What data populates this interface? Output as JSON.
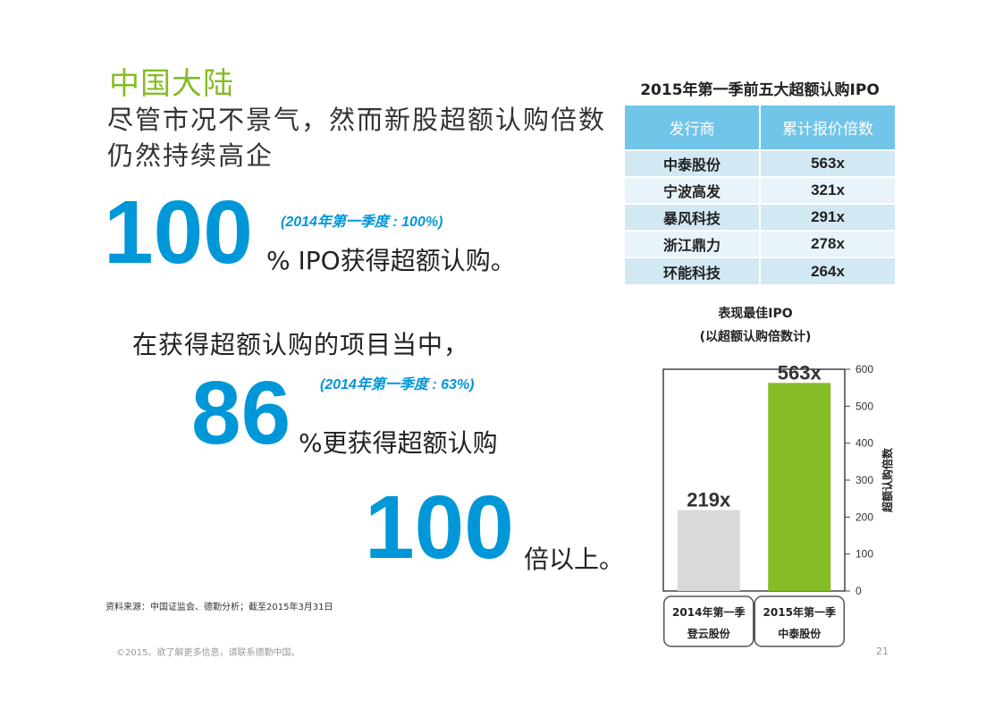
{
  "section_title": "中国大陆",
  "headline": "尽管市况不景气，然而新股超额认购倍数仍然持续高企",
  "stat1": {
    "number": "100",
    "note": "(2014年第一季度 : 100%)",
    "text": "% IPO获得超额认购。"
  },
  "stat2": {
    "intro": "在获得超额认购的项目当中，",
    "number": "86",
    "note": "(2014年第一季度 : 63%)",
    "text": "%更获得超额认购"
  },
  "stat3": {
    "number": "100",
    "text": "倍以上。"
  },
  "source": "资料来源：中国证监会、德勤分析；截至2015年3月31日",
  "footer": "©2015。欲了解更多信息，请联系德勤中国。",
  "page_number": "21",
  "table": {
    "title": "2015年第一季前五大超额认购IPO",
    "headers": [
      "发行商",
      "累计报价倍数"
    ],
    "rows": [
      [
        "中泰股份",
        "563x"
      ],
      [
        "宁波高发",
        "321x"
      ],
      [
        "暴风科技",
        "291x"
      ],
      [
        "浙江鼎力",
        "278x"
      ],
      [
        "环能科技",
        "264x"
      ]
    ]
  },
  "chart_data": {
    "type": "bar",
    "title": "表现最佳IPO",
    "subtitle": "(以超额认购倍数计)",
    "ylabel": "超额认购倍数",
    "ylim": [
      0,
      600
    ],
    "yticks": [
      0,
      100,
      200,
      300,
      400,
      500,
      600
    ],
    "categories": [
      {
        "line1": "2014年第一季",
        "line2": "登云股份"
      },
      {
        "line1": "2015年第一季",
        "line2": "中泰股份"
      }
    ],
    "values": [
      219,
      563
    ],
    "value_labels": [
      "219x",
      "563x"
    ],
    "colors": [
      "#d9d9d9",
      "#86bc25"
    ],
    "grid": false
  },
  "colors": {
    "accent_blue": "#0097d8",
    "accent_green": "#86bc25",
    "table_header": "#71c5e8"
  }
}
